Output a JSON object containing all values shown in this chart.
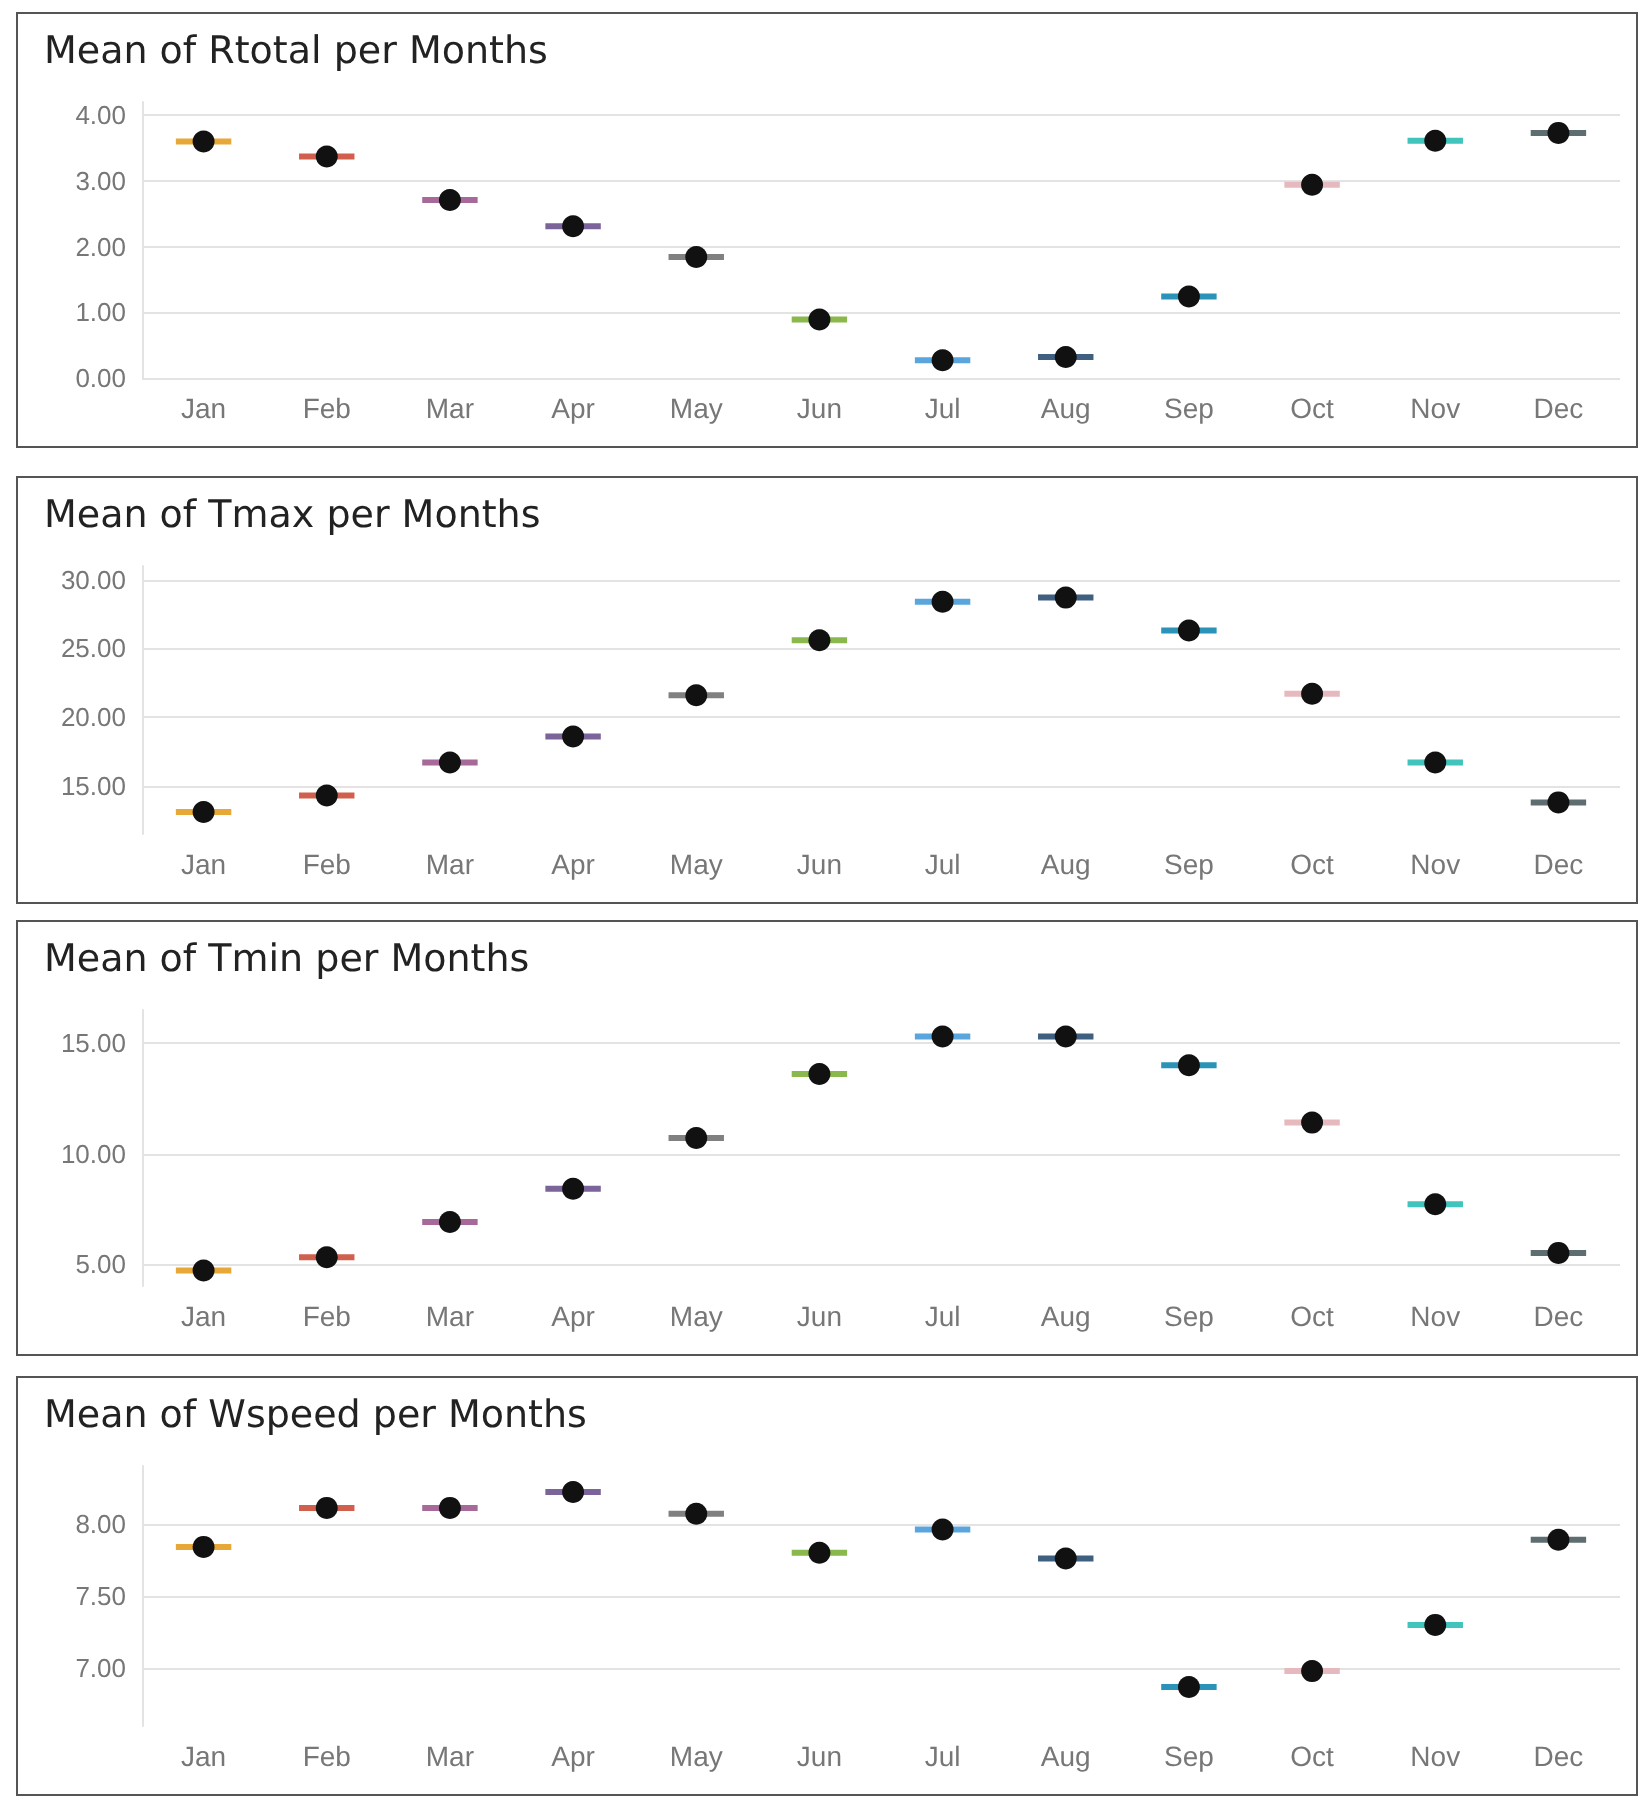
{
  "chart_data": [
    {
      "type": "scatter",
      "title": "Mean of Rtotal per Months",
      "categories": [
        "Jan",
        "Feb",
        "Mar",
        "Apr",
        "May",
        "Jun",
        "Jul",
        "Aug",
        "Sep",
        "Oct",
        "Nov",
        "Dec"
      ],
      "series": [
        {
          "type": "bar",
          "colors": [
            "#e8a838",
            "#d0604d",
            "#a66999",
            "#7a6499",
            "#808080",
            "#8ab84c",
            "#5aa5dc",
            "#3e5f80",
            "#2b93b8",
            "#e6b9be",
            "#40c4bc",
            "#5e6e70"
          ],
          "base": [
            3.6,
            3.37,
            2.71,
            2.31,
            1.84,
            0.89,
            0.27,
            0.32,
            1.24,
            2.94,
            3.61,
            3.73
          ],
          "values": [
            0,
            0,
            0,
            0,
            0,
            0,
            0,
            0,
            0,
            0,
            0,
            0
          ]
        },
        {
          "marker": "circle",
          "color": "#111111",
          "values": [
            3.6,
            3.37,
            2.71,
            2.31,
            1.84,
            0.89,
            0.27,
            0.32,
            1.24,
            2.94,
            3.61,
            3.73
          ]
        }
      ],
      "ylim": [
        0,
        4.2
      ],
      "yticks": [
        {
          "value": 0,
          "label": "0.00"
        },
        {
          "value": 1,
          "label": "1.00"
        },
        {
          "value": 2,
          "label": "2.00"
        },
        {
          "value": 3,
          "label": "3.00"
        },
        {
          "value": 4,
          "label": "4.00"
        }
      ],
      "grid": "y"
    },
    {
      "type": "scatter",
      "title": "Mean of Tmax per Months",
      "categories": [
        "Jan",
        "Feb",
        "Mar",
        "Apr",
        "May",
        "Jun",
        "Jul",
        "Aug",
        "Sep",
        "Oct",
        "Nov",
        "Dec"
      ],
      "series": [
        {
          "type": "bar",
          "colors": [
            "#e8a838",
            "#d0604d",
            "#a66999",
            "#7a6499",
            "#808080",
            "#8ab84c",
            "#5aa5dc",
            "#3e5f80",
            "#2b93b8",
            "#e6b9be",
            "#40c4bc",
            "#5e6e70"
          ],
          "base": [
            13.1,
            14.3,
            16.7,
            18.6,
            21.6,
            25.6,
            28.4,
            28.7,
            26.3,
            21.7,
            16.7,
            13.8
          ],
          "values": [
            0,
            0,
            0,
            0,
            0,
            0,
            0,
            0,
            0,
            0,
            0,
            0
          ]
        },
        {
          "marker": "circle",
          "color": "#111111",
          "values": [
            13.1,
            14.3,
            16.7,
            18.6,
            21.6,
            25.6,
            28.4,
            28.7,
            26.3,
            21.7,
            16.7,
            13.8
          ]
        }
      ],
      "ylim": [
        11.5,
        31
      ],
      "yticks": [
        {
          "value": 15,
          "label": "15.00"
        },
        {
          "value": 20,
          "label": "20.00"
        },
        {
          "value": 25,
          "label": "25.00"
        },
        {
          "value": 30,
          "label": "30.00"
        }
      ],
      "grid": "y"
    },
    {
      "type": "scatter",
      "title": "Mean of Tmin per Months",
      "categories": [
        "Jan",
        "Feb",
        "Mar",
        "Apr",
        "May",
        "Jun",
        "Jul",
        "Aug",
        "Sep",
        "Oct",
        "Nov",
        "Dec"
      ],
      "series": [
        {
          "type": "bar",
          "colors": [
            "#e8a838",
            "#d0604d",
            "#a66999",
            "#7a6499",
            "#808080",
            "#8ab84c",
            "#5aa5dc",
            "#3e5f80",
            "#2b93b8",
            "#e6b9be",
            "#40c4bc",
            "#5e6e70"
          ],
          "base": [
            4.7,
            5.3,
            6.9,
            8.4,
            10.7,
            13.6,
            15.3,
            15.3,
            14.0,
            11.4,
            7.7,
            5.5
          ],
          "values": [
            0,
            0,
            0,
            0,
            0,
            0,
            0,
            0,
            0,
            0,
            0,
            0
          ]
        },
        {
          "marker": "circle",
          "color": "#111111",
          "values": [
            4.7,
            5.3,
            6.9,
            8.4,
            10.7,
            13.6,
            15.3,
            15.3,
            14.0,
            11.4,
            7.7,
            5.5
          ]
        }
      ],
      "ylim": [
        4,
        16.5
      ],
      "yticks": [
        {
          "value": 5,
          "label": "5.00"
        },
        {
          "value": 10,
          "label": "10.00"
        },
        {
          "value": 15,
          "label": "15.00"
        }
      ],
      "grid": "y"
    },
    {
      "type": "scatter",
      "title": "Mean of Wspeed per Months",
      "categories": [
        "Jan",
        "Feb",
        "Mar",
        "Apr",
        "May",
        "Jun",
        "Jul",
        "Aug",
        "Sep",
        "Oct",
        "Nov",
        "Dec"
      ],
      "series": [
        {
          "type": "bar",
          "colors": [
            "#e8a838",
            "#d0604d",
            "#a66999",
            "#7a6499",
            "#808080",
            "#8ab84c",
            "#5aa5dc",
            "#3e5f80",
            "#2b93b8",
            "#e6b9be",
            "#40c4bc",
            "#5e6e70"
          ],
          "base": [
            7.84,
            8.11,
            8.11,
            8.22,
            8.07,
            7.8,
            7.96,
            7.76,
            6.87,
            6.98,
            7.3,
            7.89
          ],
          "values": [
            0,
            0,
            0,
            0,
            0,
            0,
            0,
            0,
            0,
            0,
            0,
            0
          ]
        },
        {
          "marker": "circle",
          "color": "#111111",
          "values": [
            7.84,
            8.11,
            8.11,
            8.22,
            8.07,
            7.8,
            7.96,
            7.76,
            6.87,
            6.98,
            7.3,
            7.89
          ]
        }
      ],
      "ylim": [
        6.6,
        8.4
      ],
      "yticks": [
        {
          "value": 7,
          "label": "7.00"
        },
        {
          "value": 7.5,
          "label": "7.50"
        },
        {
          "value": 8,
          "label": "8.00"
        }
      ],
      "grid": "y"
    }
  ]
}
